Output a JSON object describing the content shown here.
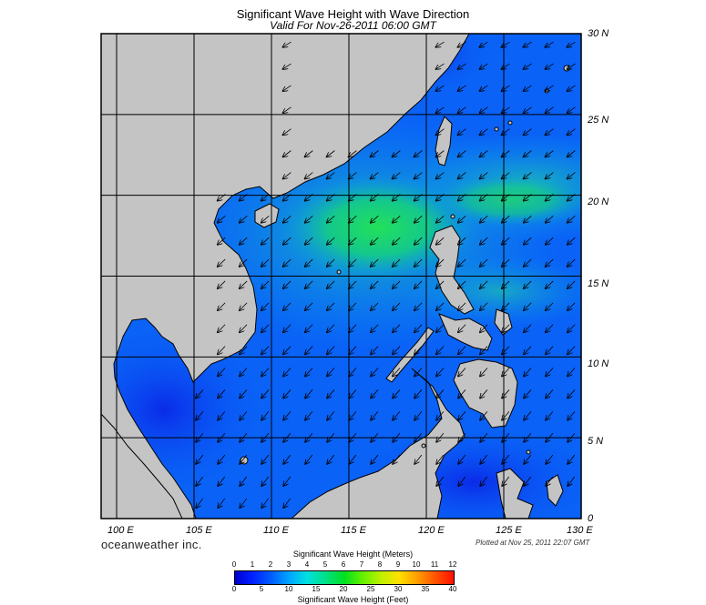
{
  "header": {
    "title": "Significant Wave Height with Wave Direction",
    "subtitle": "Valid For Nov-26-2011 06:00 GMT"
  },
  "map": {
    "lat_labels": [
      "30 N",
      "25 N",
      "20 N",
      "15 N",
      "10 N",
      "5 N",
      "0"
    ],
    "lon_labels": [
      "100 E",
      "105 E",
      "110 E",
      "115 E",
      "120 E",
      "125 E",
      "130 E"
    ],
    "extent": {
      "lon_min": 99,
      "lon_max": 130,
      "lat_min": 0,
      "lat_max": 30
    },
    "grid_step_degrees": 5,
    "land_color": "#c4c4c4",
    "dominant_wave_direction": "from the northeast"
  },
  "footer": {
    "brand": "oceanweather inc.",
    "plotted": "Plotted at Nov 25, 2011 22:07 GMT"
  },
  "legend": {
    "title_meters": "Significant Wave Height (Meters)",
    "title_feet": "Significant Wave Height (Feet)",
    "meters_ticks": [
      "0",
      "1",
      "2",
      "3",
      "4",
      "5",
      "6",
      "7",
      "8",
      "9",
      "10",
      "11",
      "12"
    ],
    "feet_ticks": [
      "0",
      "5",
      "10",
      "15",
      "20",
      "25",
      "30",
      "35",
      "40"
    ],
    "colors": [
      "#0000d0",
      "#0060ff",
      "#00a8ff",
      "#00e080",
      "#60f000",
      "#ffe000",
      "#ffa000",
      "#ff1000"
    ]
  }
}
